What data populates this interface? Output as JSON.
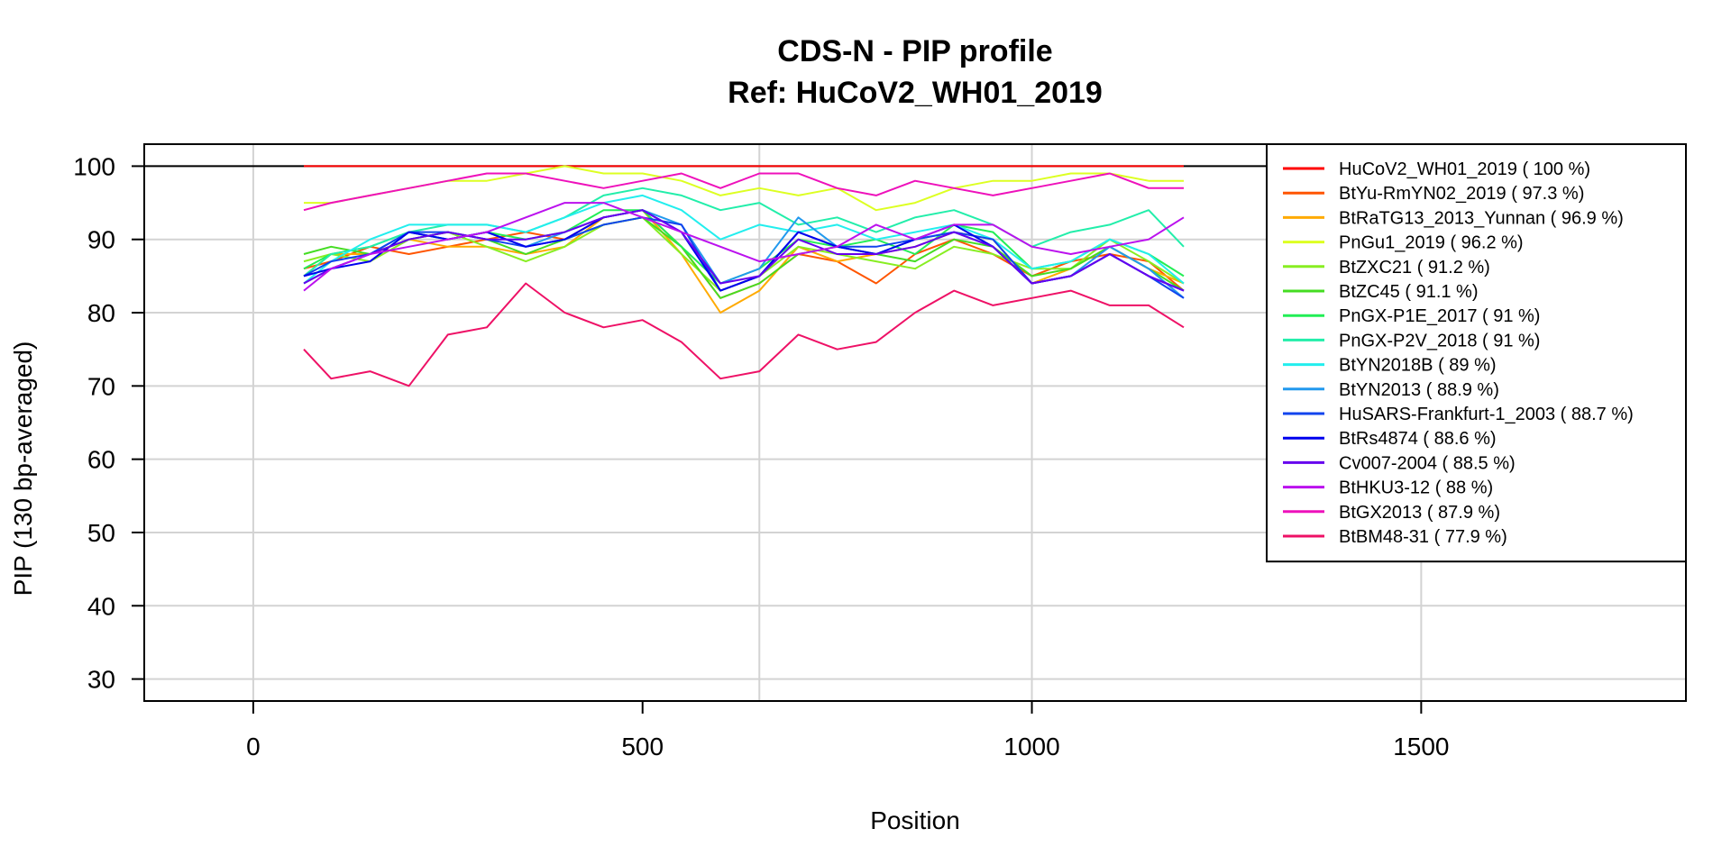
{
  "chart_data": {
    "type": "line",
    "title": "CDS-N - PIP profile",
    "subtitle": "Ref: HuCoV2_WH01_2019",
    "xlabel": "Position",
    "ylabel": "PIP (130 bp-averaged)",
    "xlim": [
      -140,
      1840
    ],
    "ylim": [
      27,
      103
    ],
    "xticks": [
      "0",
      "500",
      "1000",
      "1500"
    ],
    "xtick_values": [
      0,
      500,
      1000,
      1500
    ],
    "yticks": [
      "30",
      "40",
      "50",
      "60",
      "70",
      "80",
      "90",
      "100"
    ],
    "ytick_values": [
      30,
      40,
      50,
      60,
      70,
      80,
      90,
      100
    ],
    "grid": true,
    "grid_x": [
      0,
      650,
      1000,
      1500
    ],
    "hline": 100,
    "legend_position": "top-right",
    "series": [
      {
        "name": "HuCoV2_WH01_2019",
        "label": "HuCoV2_WH01_2019 ( 100 %)",
        "color": "#FF0000",
        "x": [
          65,
          1195
        ],
        "y": [
          100,
          100
        ]
      },
      {
        "name": "BtYu-RmYN02_2019",
        "label": "BtYu-RmYN02_2019 ( 97.3 %)",
        "color": "#FF5500",
        "x": [
          65,
          100,
          150,
          200,
          250,
          300,
          350,
          400,
          450,
          500,
          550,
          600,
          650,
          700,
          750,
          800,
          850,
          900,
          950,
          1000,
          1050,
          1100,
          1150,
          1195
        ],
        "y": [
          86,
          87,
          89,
          88,
          89,
          90,
          91,
          90,
          93,
          94,
          89,
          82,
          84,
          88,
          87,
          84,
          88,
          90,
          88,
          85,
          87,
          88,
          87,
          83
        ]
      },
      {
        "name": "BtRaTG13_2013_Yunnan",
        "label": "BtRaTG13_2013_Yunnan ( 96.9 %)",
        "color": "#FFAA00",
        "x": [
          65,
          100,
          150,
          200,
          250,
          300,
          350,
          400,
          450,
          500,
          550,
          600,
          650,
          700,
          750,
          800,
          850,
          900,
          950,
          1000,
          1050,
          1100,
          1150,
          1195
        ],
        "y": [
          85,
          88,
          88,
          90,
          89,
          89,
          88,
          89,
          93,
          94,
          88,
          80,
          83,
          89,
          87,
          88,
          89,
          91,
          90,
          84,
          86,
          89,
          86,
          84
        ]
      },
      {
        "name": "PnGu1_2019",
        "label": "PnGu1_2019 ( 96.2 %)",
        "color": "#DDFF22",
        "x": [
          65,
          100,
          150,
          200,
          250,
          300,
          350,
          400,
          450,
          500,
          550,
          600,
          650,
          700,
          750,
          800,
          850,
          900,
          950,
          1000,
          1050,
          1100,
          1150,
          1195
        ],
        "y": [
          95,
          95,
          96,
          97,
          98,
          98,
          99,
          100,
          99,
          99,
          98,
          96,
          97,
          96,
          97,
          94,
          95,
          97,
          98,
          98,
          99,
          99,
          98,
          98
        ]
      },
      {
        "name": "BtZXC21",
        "label": "BtZXC21 ( 91.2 %)",
        "color": "#88EE22",
        "x": [
          65,
          100,
          150,
          200,
          250,
          300,
          350,
          400,
          450,
          500,
          550,
          600,
          650,
          700,
          750,
          800,
          850,
          900,
          950,
          1000,
          1050,
          1100,
          1150,
          1195
        ],
        "y": [
          87,
          88,
          87,
          90,
          91,
          89,
          87,
          89,
          92,
          93,
          88,
          83,
          85,
          89,
          88,
          87,
          86,
          89,
          88,
          86,
          86,
          90,
          87,
          84
        ]
      },
      {
        "name": "BtZC45",
        "label": "BtZC45 ( 91.1 %)",
        "color": "#44DD22",
        "x": [
          65,
          100,
          150,
          200,
          250,
          300,
          350,
          400,
          450,
          500,
          550,
          600,
          650,
          700,
          750,
          800,
          850,
          900,
          950,
          1000,
          1050,
          1100,
          1150,
          1195
        ],
        "y": [
          88,
          89,
          88,
          90,
          91,
          90,
          88,
          90,
          92,
          93,
          89,
          82,
          84,
          88,
          89,
          88,
          87,
          90,
          89,
          85,
          86,
          89,
          86,
          83
        ]
      },
      {
        "name": "PnGX-P1E_2017",
        "label": "PnGX-P1E_2017 ( 91 %)",
        "color": "#22EE55",
        "x": [
          65,
          100,
          150,
          200,
          250,
          300,
          350,
          400,
          450,
          500,
          550,
          600,
          650,
          700,
          750,
          800,
          850,
          900,
          950,
          1000,
          1050,
          1100,
          1150,
          1195
        ],
        "y": [
          86,
          88,
          89,
          91,
          90,
          91,
          90,
          91,
          94,
          94,
          89,
          84,
          86,
          90,
          89,
          90,
          88,
          92,
          91,
          86,
          87,
          90,
          88,
          85
        ]
      },
      {
        "name": "PnGX-P2V_2018",
        "label": "PnGX-P2V_2018 ( 91 %)",
        "color": "#22EEAA",
        "x": [
          65,
          100,
          150,
          200,
          250,
          300,
          350,
          400,
          450,
          500,
          550,
          600,
          650,
          700,
          750,
          800,
          850,
          900,
          950,
          1000,
          1050,
          1100,
          1150,
          1195
        ],
        "y": [
          85,
          88,
          89,
          91,
          92,
          92,
          91,
          93,
          96,
          97,
          96,
          94,
          95,
          92,
          93,
          91,
          93,
          94,
          92,
          89,
          91,
          92,
          94,
          89
        ]
      },
      {
        "name": "BtYN2018B",
        "label": "BtYN2018B ( 89 %)",
        "color": "#22EEEE",
        "x": [
          65,
          100,
          150,
          200,
          250,
          300,
          350,
          400,
          450,
          500,
          550,
          600,
          650,
          700,
          750,
          800,
          850,
          900,
          950,
          1000,
          1050,
          1100,
          1150,
          1195
        ],
        "y": [
          84,
          87,
          90,
          92,
          92,
          92,
          91,
          93,
          95,
          96,
          94,
          90,
          92,
          91,
          92,
          90,
          91,
          92,
          90,
          86,
          87,
          90,
          88,
          84
        ]
      },
      {
        "name": "BtYN2013",
        "label": "BtYN2013 ( 88.9 %)",
        "color": "#2299EE",
        "x": [
          65,
          100,
          150,
          200,
          250,
          300,
          350,
          400,
          450,
          500,
          550,
          600,
          650,
          700,
          750,
          800,
          850,
          900,
          950,
          1000,
          1050,
          1100,
          1150,
          1195
        ],
        "y": [
          84,
          86,
          88,
          91,
          90,
          91,
          89,
          91,
          93,
          94,
          92,
          84,
          86,
          93,
          89,
          88,
          90,
          91,
          89,
          84,
          85,
          89,
          86,
          82
        ]
      },
      {
        "name": "HuSARS-Frankfurt-1_2003",
        "label": "HuSARS-Frankfurt-1_2003 ( 88.7 %)",
        "color": "#1144EE",
        "x": [
          65,
          100,
          150,
          200,
          250,
          300,
          350,
          400,
          450,
          500,
          550,
          600,
          650,
          700,
          750,
          800,
          850,
          900,
          950,
          1000,
          1050,
          1100,
          1150,
          1195
        ],
        "y": [
          85,
          87,
          88,
          91,
          91,
          90,
          89,
          90,
          92,
          93,
          92,
          83,
          85,
          91,
          89,
          89,
          90,
          91,
          90,
          84,
          85,
          88,
          85,
          82
        ]
      },
      {
        "name": "BtRs4874",
        "label": "BtRs4874 ( 88.6 %)",
        "color": "#0000EE",
        "x": [
          65,
          100,
          150,
          200,
          250,
          300,
          350,
          400,
          450,
          500,
          550,
          600,
          650,
          700,
          750,
          800,
          850,
          900,
          950,
          1000,
          1050,
          1100,
          1150,
          1195
        ],
        "y": [
          85,
          86,
          87,
          91,
          90,
          91,
          89,
          90,
          93,
          94,
          91,
          83,
          85,
          91,
          89,
          88,
          90,
          92,
          89,
          84,
          85,
          88,
          85,
          83
        ]
      },
      {
        "name": "Cv007-2004",
        "label": "Cv007-2004 ( 88.5 %)",
        "color": "#6600EE",
        "x": [
          65,
          100,
          150,
          200,
          250,
          300,
          350,
          400,
          450,
          500,
          550,
          600,
          650,
          700,
          750,
          800,
          850,
          900,
          950,
          1000,
          1050,
          1100,
          1150,
          1195
        ],
        "y": [
          84,
          86,
          88,
          90,
          91,
          90,
          90,
          91,
          93,
          94,
          91,
          84,
          85,
          90,
          88,
          88,
          89,
          91,
          89,
          84,
          85,
          88,
          85,
          83
        ]
      },
      {
        "name": "BtHKU3-12",
        "label": "BtHKU3-12 ( 88 %)",
        "color": "#BB11EE",
        "x": [
          65,
          100,
          150,
          200,
          250,
          300,
          350,
          400,
          450,
          500,
          550,
          600,
          650,
          700,
          750,
          800,
          850,
          900,
          950,
          1000,
          1050,
          1100,
          1150,
          1195
        ],
        "y": [
          83,
          86,
          88,
          89,
          90,
          91,
          93,
          95,
          95,
          93,
          91,
          89,
          87,
          88,
          89,
          92,
          90,
          92,
          92,
          89,
          88,
          89,
          90,
          93
        ]
      },
      {
        "name": "BtGX2013",
        "label": "BtGX2013 ( 87.9 %)",
        "color": "#EE11BB",
        "x": [
          65,
          100,
          150,
          200,
          250,
          300,
          350,
          400,
          450,
          500,
          550,
          600,
          650,
          700,
          750,
          800,
          850,
          900,
          950,
          1000,
          1050,
          1100,
          1150,
          1195
        ],
        "y": [
          94,
          95,
          96,
          97,
          98,
          99,
          99,
          98,
          97,
          98,
          99,
          97,
          99,
          99,
          97,
          96,
          98,
          97,
          96,
          97,
          98,
          99,
          97,
          97
        ]
      },
      {
        "name": "BtBM48-31",
        "label": "BtBM48-31 ( 77.9 %)",
        "color": "#EE1166",
        "x": [
          65,
          100,
          150,
          200,
          250,
          300,
          350,
          400,
          450,
          500,
          550,
          600,
          650,
          700,
          750,
          800,
          850,
          900,
          950,
          1000,
          1050,
          1100,
          1150,
          1195
        ],
        "y": [
          75,
          71,
          72,
          70,
          77,
          78,
          84,
          80,
          78,
          79,
          76,
          71,
          72,
          77,
          75,
          76,
          80,
          83,
          81,
          82,
          83,
          81,
          81,
          78
        ]
      }
    ]
  }
}
